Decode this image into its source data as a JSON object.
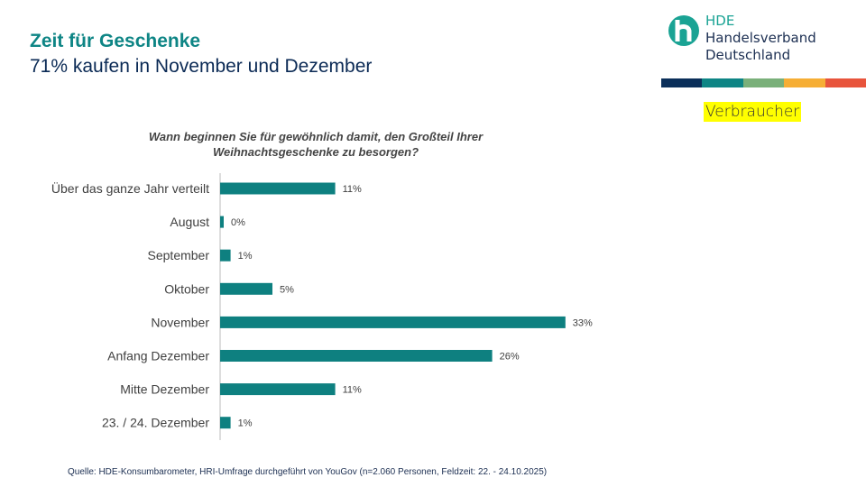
{
  "title": "Zeit für Geschenke",
  "subtitle": "71% kaufen in November und Dezember",
  "logo": {
    "line1": "HDE",
    "line2": "Handelsverband",
    "line3": "Deutschland",
    "stripe_colors": [
      "#0b2f5a",
      "#0e8585",
      "#7ab07a",
      "#f6ae35",
      "#e8543c"
    ]
  },
  "tag": "Verbraucher",
  "source": "Quelle: HDE-Konsumbarometer, HRI-Umfrage durchgeführt von YouGov (n=2.060 Personen, Feldzeit: 22. - 24.10.2025)",
  "chart_data": {
    "type": "bar",
    "orientation": "horizontal",
    "title": "Wann beginnen Sie für gewöhnlich damit, den Großteil Ihrer Weihnachtsgeschenke zu besorgen?",
    "categories": [
      "Über das ganze Jahr verteilt",
      "August",
      "September",
      "Oktober",
      "November",
      "Anfang Dezember",
      "Mitte Dezember",
      "23. / 24. Dezember"
    ],
    "values": [
      11,
      0,
      1,
      5,
      33,
      26,
      11,
      1
    ],
    "labels": [
      "11%",
      "0%",
      "1%",
      "5%",
      "33%",
      "26%",
      "11%",
      "1%"
    ],
    "unit": "%",
    "bar_color": "#0e8080",
    "grid": false
  }
}
